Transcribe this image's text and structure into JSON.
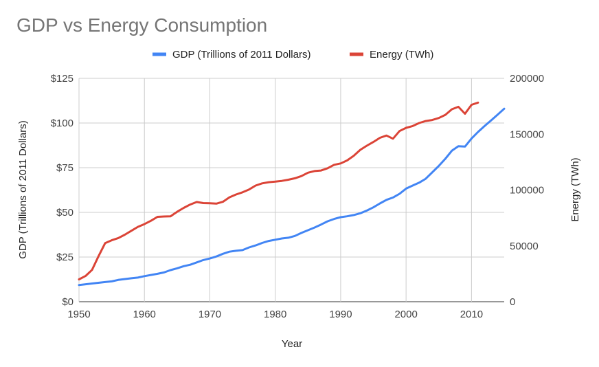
{
  "chart_data": {
    "type": "line",
    "title": "GDP vs Energy  Consumption",
    "xlabel": "Year",
    "ylabel_left": "GDP (Trillions of 2011 Dollars)",
    "ylabel_right": "Energy (TWh)",
    "xlim": [
      1950,
      2015
    ],
    "ylim_left": [
      0,
      125
    ],
    "ylim_right": [
      0,
      200000
    ],
    "x_ticks": [
      1950,
      1960,
      1970,
      1980,
      1990,
      2000,
      2010
    ],
    "x_tick_labels": [
      "1950",
      "1960",
      "1970",
      "1980",
      "1990",
      "2000",
      "2010"
    ],
    "y_left_ticks": [
      0,
      25,
      50,
      75,
      100,
      125
    ],
    "y_left_tick_labels": [
      "$0",
      "$25",
      "$50",
      "$75",
      "$100",
      "$125"
    ],
    "y_right_ticks": [
      0,
      50000,
      100000,
      150000,
      200000
    ],
    "y_right_tick_labels": [
      "0",
      "50000",
      "100000",
      "150000",
      "200000"
    ],
    "grid": true,
    "legend_position": "top",
    "series": [
      {
        "name": "GDP (Trillions of 2011 Dollars)",
        "color": "#4285f4",
        "axis": "left",
        "x": [
          1950,
          1952,
          1954,
          1955,
          1956,
          1958,
          1959,
          1960,
          1962,
          1963,
          1964,
          1965,
          1966,
          1967,
          1968,
          1969,
          1970,
          1971,
          1972,
          1973,
          1974,
          1975,
          1976,
          1977,
          1978,
          1979,
          1980,
          1981,
          1982,
          1983,
          1984,
          1985,
          1986,
          1987,
          1988,
          1989,
          1990,
          1991,
          1992,
          1993,
          1994,
          1995,
          1996,
          1997,
          1998,
          1999,
          2000,
          2001,
          2002,
          2003,
          2004,
          2005,
          2006,
          2007,
          2008,
          2009,
          2010,
          2011,
          2012,
          2013,
          2014,
          2015
        ],
        "values": [
          9.3,
          10.2,
          11.0,
          11.4,
          12.2,
          13.1,
          13.5,
          14.3,
          15.6,
          16.4,
          17.7,
          18.7,
          19.9,
          20.7,
          22.0,
          23.3,
          24.2,
          25.3,
          26.8,
          28.0,
          28.5,
          28.9,
          30.4,
          31.5,
          32.9,
          34.0,
          34.7,
          35.4,
          35.8,
          36.8,
          38.5,
          40.0,
          41.5,
          43.2,
          45.0,
          46.3,
          47.3,
          47.8,
          48.5,
          49.5,
          51.0,
          52.8,
          55.0,
          57.0,
          58.3,
          60.4,
          63.3,
          65.0,
          66.6,
          68.8,
          72.4,
          76.0,
          80.0,
          84.5,
          87.0,
          86.8,
          91.3,
          95.0,
          98.3,
          101.5,
          104.7,
          108.0
        ]
      },
      {
        "name": "Energy (TWh)",
        "color": "#db4437",
        "axis": "right",
        "x": [
          1950,
          1951,
          1952,
          1953,
          1954,
          1955,
          1956,
          1957,
          1958,
          1959,
          1960,
          1961,
          1962,
          1963,
          1964,
          1965,
          1966,
          1967,
          1968,
          1969,
          1970,
          1971,
          1972,
          1973,
          1974,
          1975,
          1976,
          1977,
          1978,
          1979,
          1980,
          1981,
          1982,
          1983,
          1984,
          1985,
          1986,
          1987,
          1988,
          1989,
          1990,
          1991,
          1992,
          1993,
          1994,
          1995,
          1996,
          1997,
          1998,
          1999,
          2000,
          2001,
          2002,
          2003,
          2004,
          2005,
          2006,
          2007,
          2008,
          2009,
          2010,
          2011
        ],
        "values": [
          20000,
          23000,
          28500,
          41000,
          52500,
          55000,
          57000,
          60000,
          63500,
          67000,
          69500,
          72500,
          76000,
          76300,
          76500,
          80500,
          84000,
          87000,
          89300,
          88300,
          88200,
          87800,
          89500,
          93500,
          96000,
          98000,
          100500,
          104000,
          106000,
          107000,
          107500,
          108200,
          109200,
          110500,
          112500,
          115500,
          117000,
          117500,
          119500,
          122600,
          123800,
          126500,
          130700,
          136000,
          139700,
          143000,
          146800,
          148800,
          146000,
          152800,
          155700,
          157300,
          160000,
          161800,
          162700,
          164500,
          167300,
          172300,
          174500,
          168300,
          176300,
          178300
        ]
      }
    ]
  }
}
